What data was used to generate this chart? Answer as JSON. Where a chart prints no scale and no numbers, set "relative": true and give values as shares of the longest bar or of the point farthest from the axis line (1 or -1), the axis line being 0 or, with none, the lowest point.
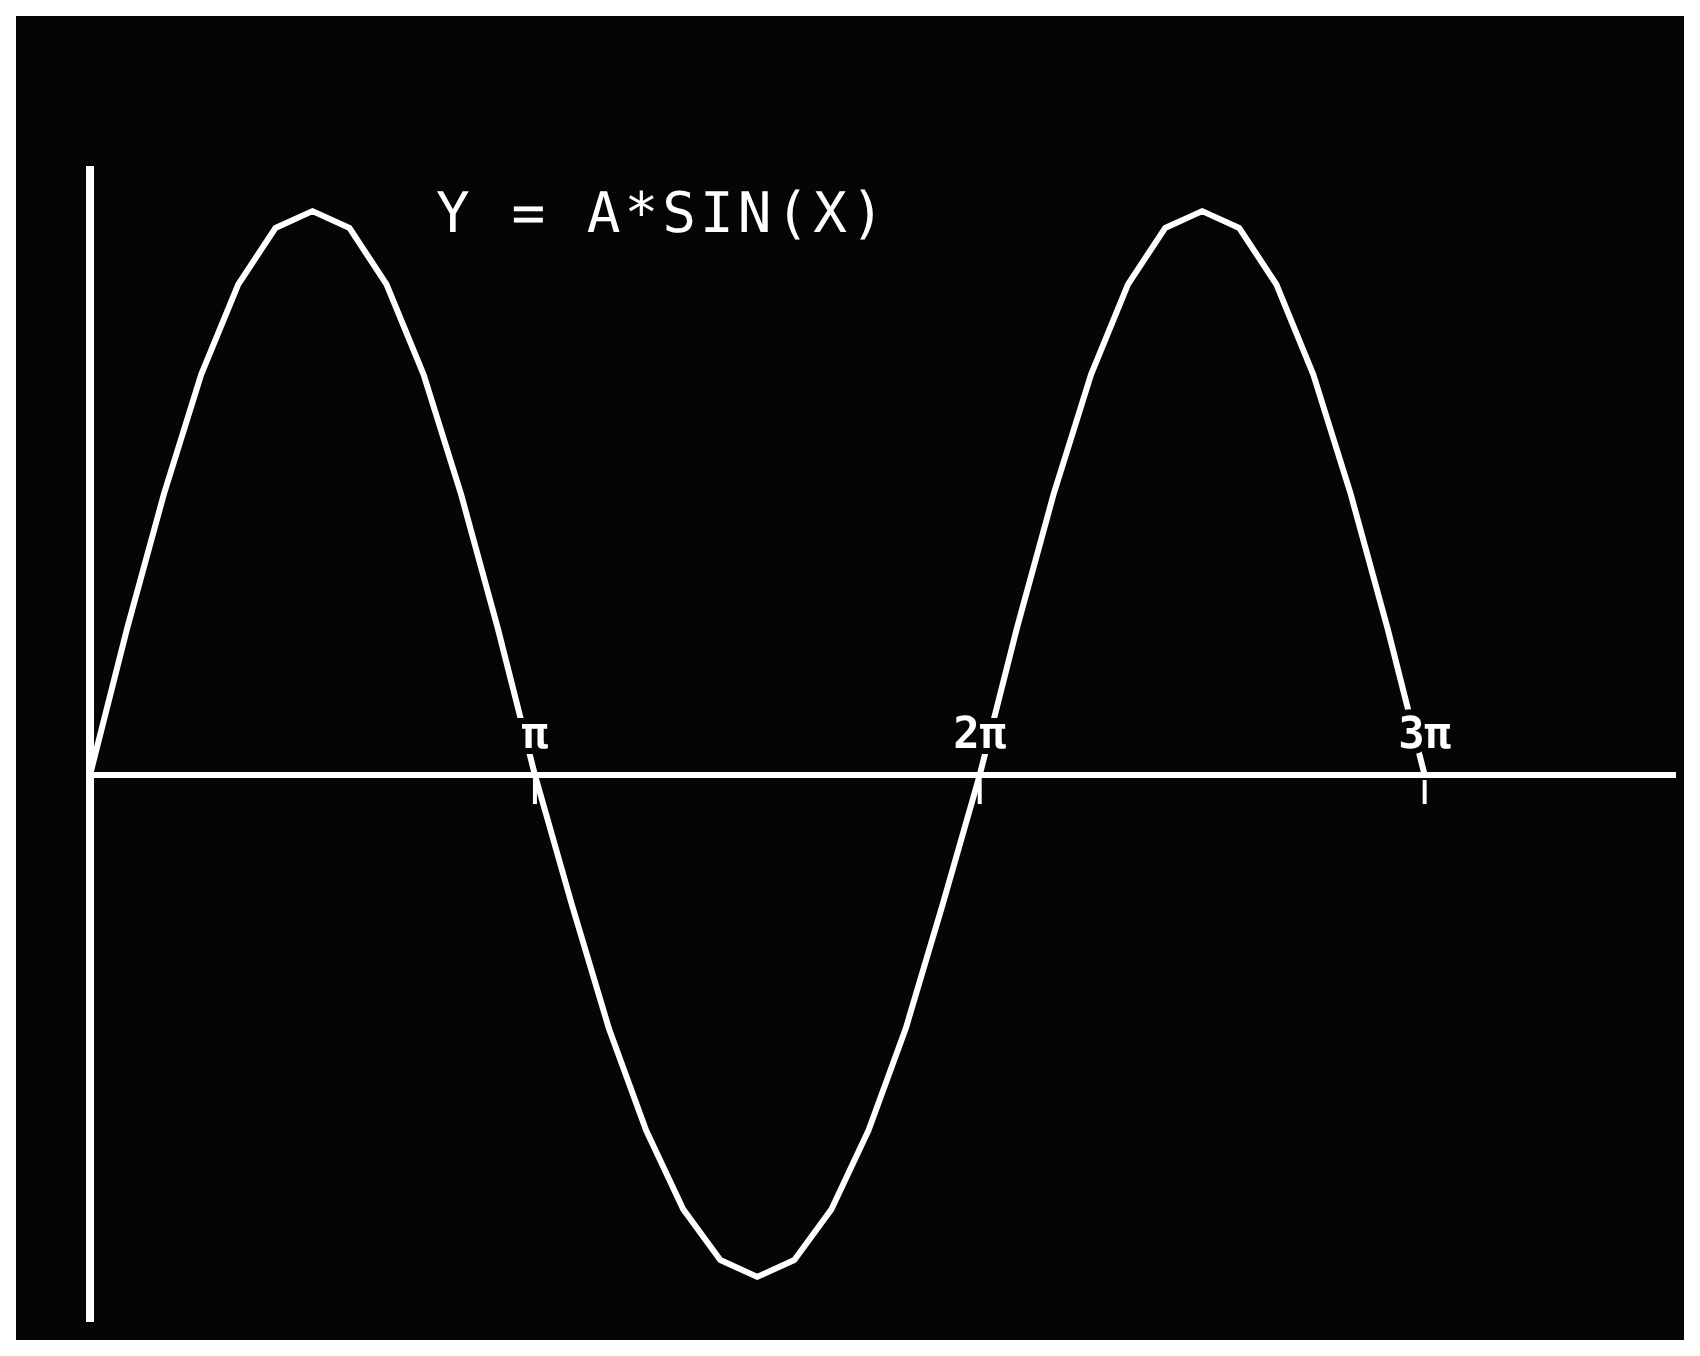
{
  "chart_data": {
    "type": "line",
    "title": "Y = A*SIN(X)",
    "relative": true,
    "color": "#ffffff",
    "x": [
      0,
      0.262,
      0.524,
      0.785,
      1.047,
      1.309,
      1.571,
      1.833,
      2.094,
      2.356,
      2.618,
      2.88,
      3.142,
      3.403,
      3.665,
      3.927,
      4.189,
      4.451,
      4.712,
      4.974,
      5.236,
      5.498,
      5.76,
      6.021,
      6.283,
      6.545,
      6.807,
      7.069,
      7.33,
      7.592,
      7.854,
      8.116,
      8.378,
      8.639,
      8.901,
      9.163,
      9.425
    ],
    "values": [
      0,
      0.26,
      0.5,
      0.71,
      0.87,
      0.97,
      1,
      0.97,
      0.87,
      0.71,
      0.5,
      0.26,
      0,
      -0.23,
      -0.45,
      -0.63,
      -0.77,
      -0.86,
      -0.89,
      -0.86,
      -0.77,
      -0.63,
      -0.45,
      -0.23,
      0,
      0.26,
      0.5,
      0.71,
      0.87,
      0.97,
      1,
      0.97,
      0.87,
      0.71,
      0.5,
      0.26,
      0
    ],
    "xlim": [
      0,
      11.2
    ],
    "xticks": [
      {
        "value": 3.142,
        "label": "π"
      },
      {
        "value": 6.283,
        "label": "2π"
      },
      {
        "value": 9.425,
        "label": "3π"
      }
    ],
    "grid": false,
    "legend": false,
    "marker": "none",
    "line_style": "solid"
  }
}
